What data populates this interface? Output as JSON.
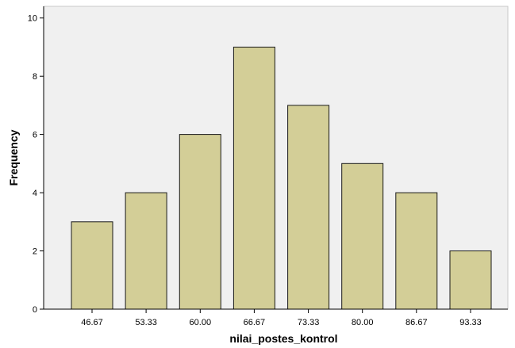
{
  "chart_data": {
    "type": "bar",
    "title": "",
    "xlabel": "nilai_postes_kontrol",
    "ylabel": "Frequency",
    "categories": [
      "46.67",
      "53.33",
      "60.00",
      "66.67",
      "73.33",
      "80.00",
      "86.67",
      "93.33"
    ],
    "values": [
      3,
      4,
      6,
      9,
      7,
      5,
      4,
      2
    ],
    "ylim": [
      0,
      10.4
    ],
    "yticks": [
      0,
      2,
      4,
      6,
      8,
      10
    ],
    "ytick_labels": [
      "0",
      "2",
      "4",
      "6",
      "8",
      "10"
    ],
    "grid": false,
    "legend": "none"
  },
  "colors": {
    "plot_background": "#f0f0f0",
    "bar_fill": "#d3ce97",
    "bar_stroke": "#1a1a1a",
    "axis": "#000000"
  }
}
